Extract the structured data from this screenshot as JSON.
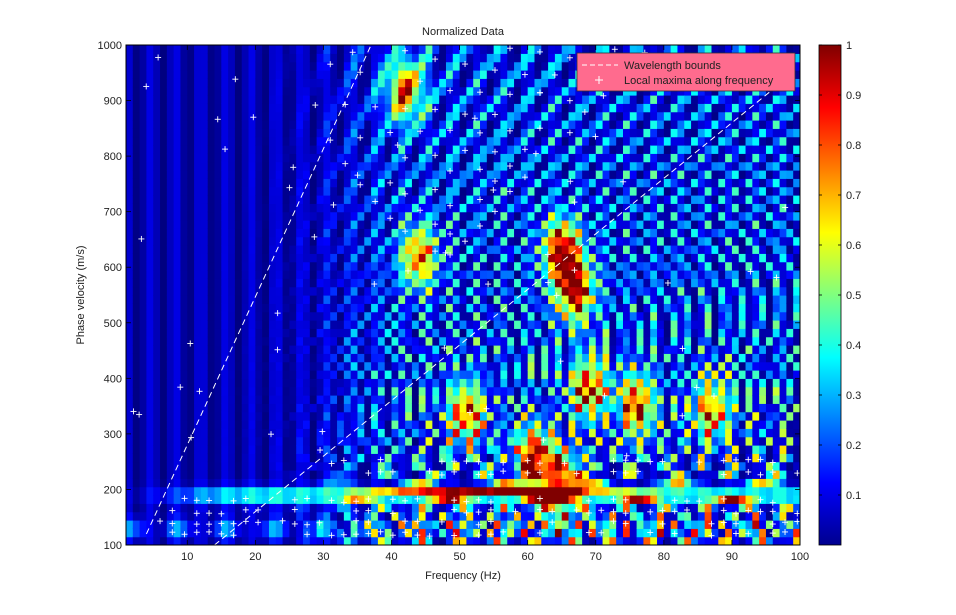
{
  "chart_data": {
    "type": "heatmap",
    "title": "Normalized Data",
    "xlabel": "Frequency (Hz)",
    "ylabel": "Phase velocity (m/s)",
    "xlim": [
      1,
      100
    ],
    "ylim": [
      100,
      1000
    ],
    "x_ticks": [
      10,
      20,
      30,
      40,
      50,
      60,
      70,
      80,
      90,
      100
    ],
    "y_ticks": [
      100,
      200,
      300,
      400,
      500,
      600,
      700,
      800,
      900,
      1000
    ],
    "colorbar": {
      "range": [
        0,
        1
      ],
      "ticks": [
        0.1,
        0.2,
        0.3,
        0.4,
        0.5,
        0.6,
        0.7,
        0.8,
        0.9,
        1
      ],
      "tick_labels": [
        "0.1",
        "0.2",
        "0.3",
        "0.4",
        "0.5",
        "0.6",
        "0.7",
        "0.8",
        "0.9",
        "1"
      ],
      "colormap": "jet"
    },
    "legend": {
      "placement": "top-right",
      "background": "#ff6b8e",
      "entries": [
        "Wavelength bounds",
        "Local maxima along frequency"
      ]
    },
    "wavelength_bounds": [
      {
        "name": "Wavelength bounds",
        "x": [
          4,
          37
        ],
        "y": [
          120,
          1000
        ],
        "color": "#ffffff",
        "style": "dashed"
      },
      {
        "name": "Wavelength bounds",
        "x": [
          14,
          96
        ],
        "y": [
          100,
          920
        ],
        "color": "#ffffff",
        "style": "dashed"
      }
    ],
    "maxima_color": "#ffffff",
    "hot_spots": [
      {
        "x": 42,
        "y": 920,
        "value": 0.75
      },
      {
        "x": 44,
        "y": 620,
        "value": 0.7
      },
      {
        "x": 65,
        "y": 630,
        "value": 0.92
      },
      {
        "x": 67,
        "y": 560,
        "value": 0.9
      },
      {
        "x": 51,
        "y": 340,
        "value": 0.72
      },
      {
        "x": 61,
        "y": 255,
        "value": 0.85
      },
      {
        "x": 65,
        "y": 210,
        "value": 0.82
      },
      {
        "x": 69,
        "y": 385,
        "value": 0.72
      },
      {
        "x": 76,
        "y": 355,
        "value": 0.74
      },
      {
        "x": 87,
        "y": 345,
        "value": 0.66
      }
    ]
  }
}
